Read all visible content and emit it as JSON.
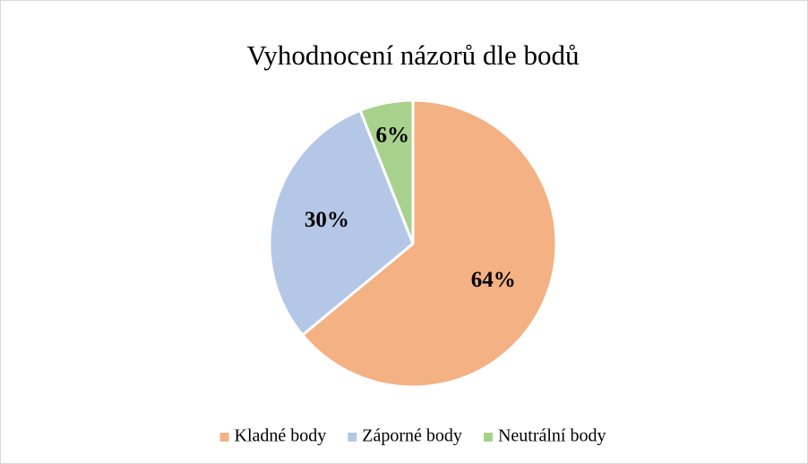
{
  "chart_data": {
    "type": "pie",
    "title": "Vyhodnocení názorů dle bodů",
    "categories": [
      "Kladné body",
      "Záporné body",
      "Neutrální body"
    ],
    "values": [
      64,
      30,
      6
    ],
    "value_labels": [
      "64%",
      "30%",
      "6%"
    ],
    "colors": [
      "#f4b183",
      "#b4c7e7",
      "#a9d18e"
    ],
    "legend": "bottom"
  }
}
